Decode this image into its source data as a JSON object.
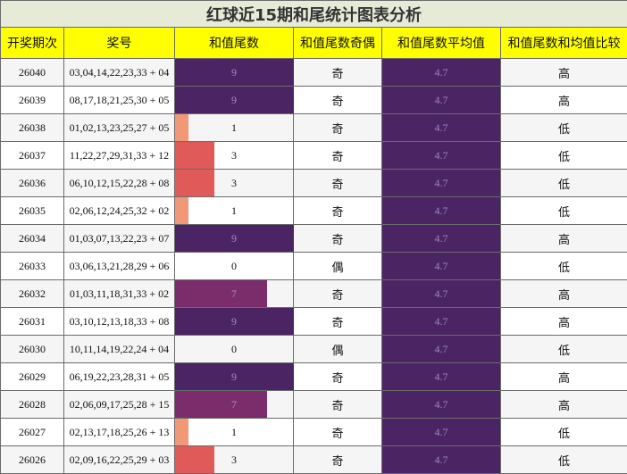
{
  "title": "红球近15期和尾统计图表分析",
  "headers": [
    "开奖期次",
    "奖号",
    "和值尾数",
    "和值尾数奇偶",
    "和值尾数平均值",
    "和值尾数和均值比较"
  ],
  "colors": {
    "title_bg": "#e6ebd8",
    "header_bg": "#ffff00",
    "avg_bg": "#4a2463",
    "tail_9": "#4a2463",
    "tail_7": "#7b2d6b",
    "tail_3": "#e05a5a",
    "tail_1": "#f09878"
  },
  "scale_max": 9,
  "rows": [
    {
      "period": "26040",
      "numbers": "03,04,14,22,23,33 + 04",
      "tail": "9",
      "parity": "奇",
      "avg": "4.7",
      "compare": "高"
    },
    {
      "period": "26039",
      "numbers": "08,17,18,21,25,30 + 05",
      "tail": "9",
      "parity": "奇",
      "avg": "4.7",
      "compare": "高"
    },
    {
      "period": "26038",
      "numbers": "01,02,13,23,25,27 + 05",
      "tail": "1",
      "parity": "奇",
      "avg": "4.7",
      "compare": "低"
    },
    {
      "period": "26037",
      "numbers": "11,22,27,29,31,33 + 12",
      "tail": "3",
      "parity": "奇",
      "avg": "4.7",
      "compare": "低"
    },
    {
      "period": "26036",
      "numbers": "06,10,12,15,22,28 + 08",
      "tail": "3",
      "parity": "奇",
      "avg": "4.7",
      "compare": "低"
    },
    {
      "period": "26035",
      "numbers": "02,06,12,24,25,32 + 02",
      "tail": "1",
      "parity": "奇",
      "avg": "4.7",
      "compare": "低"
    },
    {
      "period": "26034",
      "numbers": "01,03,07,13,22,23 + 07",
      "tail": "9",
      "parity": "奇",
      "avg": "4.7",
      "compare": "高"
    },
    {
      "period": "26033",
      "numbers": "03,06,13,21,28,29 + 06",
      "tail": "0",
      "parity": "偶",
      "avg": "4.7",
      "compare": "低"
    },
    {
      "period": "26032",
      "numbers": "01,03,11,18,31,33 + 02",
      "tail": "7",
      "parity": "奇",
      "avg": "4.7",
      "compare": "高"
    },
    {
      "period": "26031",
      "numbers": "03,10,12,13,18,33 + 08",
      "tail": "9",
      "parity": "奇",
      "avg": "4.7",
      "compare": "高"
    },
    {
      "period": "26030",
      "numbers": "10,11,14,19,22,24 + 04",
      "tail": "0",
      "parity": "偶",
      "avg": "4.7",
      "compare": "低"
    },
    {
      "period": "26029",
      "numbers": "06,19,22,23,28,31 + 05",
      "tail": "9",
      "parity": "奇",
      "avg": "4.7",
      "compare": "高"
    },
    {
      "period": "26028",
      "numbers": "02,06,09,17,25,28 + 15",
      "tail": "7",
      "parity": "奇",
      "avg": "4.7",
      "compare": "高"
    },
    {
      "period": "26027",
      "numbers": "02,13,17,18,25,26 + 13",
      "tail": "1",
      "parity": "奇",
      "avg": "4.7",
      "compare": "低"
    },
    {
      "period": "26026",
      "numbers": "02,09,16,22,25,29 + 03",
      "tail": "3",
      "parity": "奇",
      "avg": "4.7",
      "compare": "低"
    }
  ]
}
